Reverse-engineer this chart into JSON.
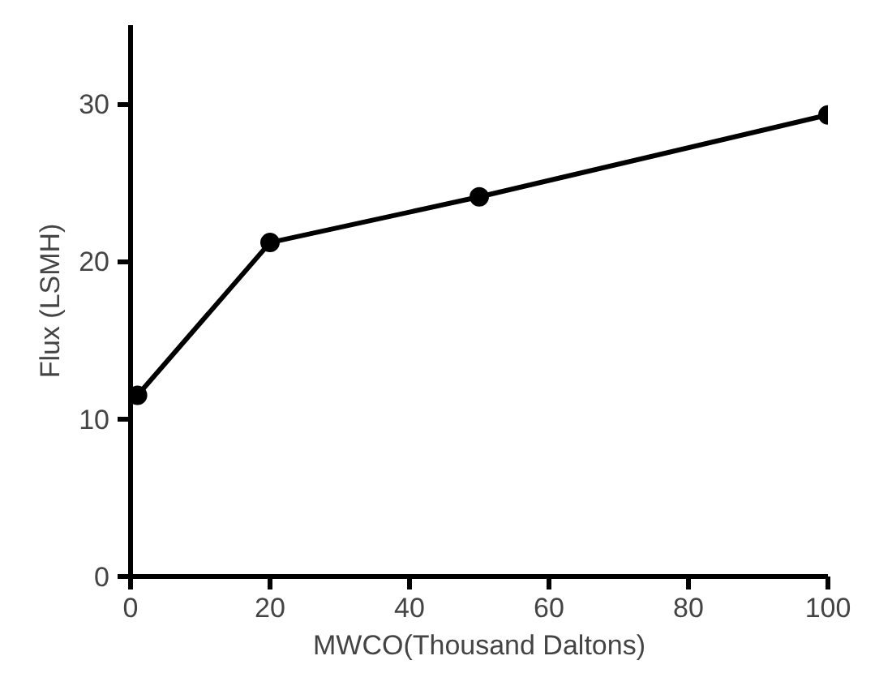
{
  "chart_data": {
    "type": "line",
    "xlabel": "MWCO(Thousand Daltons)",
    "ylabel": "Flux (LSMH)",
    "x": [
      1,
      20,
      50,
      100
    ],
    "series": [
      {
        "color": "#000000",
        "values": [
          11.5,
          21.2,
          24.1,
          29.3
        ]
      }
    ],
    "xlim": [
      0,
      100
    ],
    "ylim": [
      0,
      35
    ],
    "xticks": [
      0,
      20,
      40,
      60,
      80,
      100
    ],
    "yticks": [
      0,
      10,
      20,
      30
    ],
    "marker": "circle",
    "line_style": "solid",
    "grid": false
  }
}
